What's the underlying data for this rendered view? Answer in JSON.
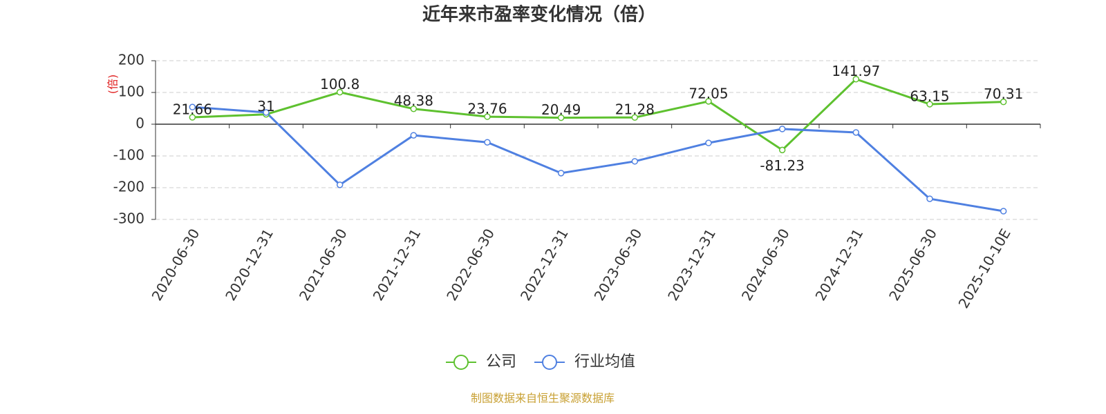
{
  "chart_data": {
    "type": "line",
    "title": "近年来市盈率变化情况（倍）",
    "y_label": "(倍)",
    "source": "制图数据来自恒生聚源数据库",
    "categories": [
      "2020-06-30",
      "2020-12-31",
      "2021-06-30",
      "2021-12-31",
      "2022-06-30",
      "2022-12-31",
      "2023-06-30",
      "2023-12-31",
      "2024-06-30",
      "2024-12-31",
      "2025-06-30",
      "2025-10-10E"
    ],
    "series": [
      {
        "name": "公司",
        "color": "#5ec12f",
        "values": [
          21.66,
          31,
          100.8,
          48.38,
          23.76,
          20.49,
          21.28,
          72.05,
          -81.23,
          141.97,
          63.15,
          70.31
        ]
      },
      {
        "name": "行业均值",
        "color": "#4f80e1",
        "values": [
          54,
          37,
          -191,
          -35,
          -57,
          -154,
          -117,
          -59,
          -15,
          -26,
          -235,
          -274
        ]
      }
    ],
    "ylim": [
      -300,
      200
    ],
    "yticks": [
      -300,
      -200,
      -100,
      0,
      100,
      200
    ],
    "grid": true
  }
}
